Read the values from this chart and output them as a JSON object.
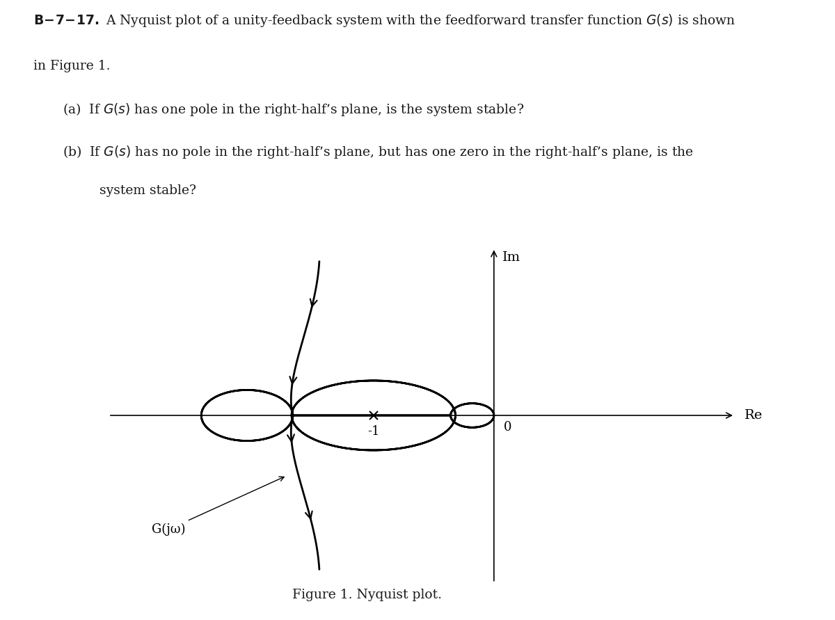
{
  "figure_caption": "Figure 1. Nyquist plot.",
  "axis_xlabel": "Re",
  "axis_ylabel": "Im",
  "origin_label": "0",
  "critical_point_label": "-1",
  "gjw_label": "G(jω)",
  "background_color": "#ffffff",
  "line_color": "#000000",
  "text_color": "#000000",
  "lw": 2.0,
  "clx": -2.05,
  "rl": 0.38,
  "cmx": -1.0,
  "rmx": 0.68,
  "rmy": 0.52,
  "csx": -0.18,
  "rs": 0.18
}
